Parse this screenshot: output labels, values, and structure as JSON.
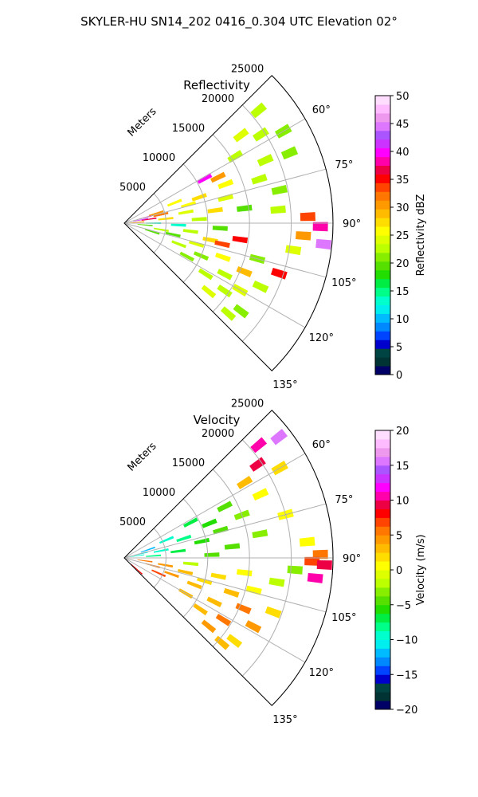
{
  "figure": {
    "title": "SKYLER-HU  SN14_202  0416_0.304 UTC Elevation 02°"
  },
  "colormaps": {
    "reflectivity": [
      "#000066",
      "#003333",
      "#004444",
      "#0000cc",
      "#0044ff",
      "#0088ff",
      "#00bbff",
      "#00eeee",
      "#00ffcc",
      "#00ff88",
      "#00ee44",
      "#22dd00",
      "#55e000",
      "#88ee00",
      "#bbff00",
      "#ddff00",
      "#ffff00",
      "#ffdd00",
      "#ffbb00",
      "#ff9900",
      "#ff7700",
      "#ff4400",
      "#ff0000",
      "#ee0044",
      "#ff00aa",
      "#ff00ff",
      "#cc33ff",
      "#aa55ff",
      "#dd77ff",
      "#ee99ee",
      "#ffbbff",
      "#ffddff"
    ],
    "velocity": [
      "#000066",
      "#003333",
      "#004444",
      "#0000cc",
      "#0044ff",
      "#0088ff",
      "#00bbff",
      "#00eeee",
      "#00ffcc",
      "#00ff88",
      "#00ee44",
      "#22dd00",
      "#55e000",
      "#88ee00",
      "#bbff00",
      "#ddff00",
      "#ffff00",
      "#ffdd00",
      "#ffbb00",
      "#ff9900",
      "#ff7700",
      "#ff4400",
      "#ff0000",
      "#ee0044",
      "#ff00aa",
      "#ff00ff",
      "#cc33ff",
      "#aa55ff",
      "#dd77ff",
      "#ee99ee",
      "#ffbbff",
      "#ffddff"
    ]
  },
  "chart_data": [
    {
      "type": "heatmap",
      "projection": "polar-sector",
      "title": "Reflectivity",
      "radial_label": "Meters",
      "radial_ticks": [
        5000,
        10000,
        15000,
        20000,
        25000
      ],
      "radial_tick_labels": [
        "5000",
        "10000",
        "15000",
        "20000",
        "25000"
      ],
      "radial_range": [
        0,
        25000
      ],
      "azimuth_range": [
        45,
        135
      ],
      "azimuth_ticks": [
        60,
        75,
        90,
        105,
        120,
        135
      ],
      "azimuth_tick_labels": [
        "60°",
        "75°",
        "90°",
        "105°",
        "120°",
        "135°"
      ],
      "grid": true,
      "colorbar": {
        "label": "Reflectivity dBZ",
        "range": [
          0,
          50
        ],
        "ticks": [
          0,
          5,
          10,
          15,
          20,
          25,
          30,
          35,
          40,
          45,
          50
        ],
        "tick_labels": [
          "0",
          "5",
          "10",
          "15",
          "20",
          "25",
          "30",
          "35",
          "40",
          "45",
          "50"
        ]
      },
      "cells": [
        {
          "az": 50,
          "r": 21000,
          "v": 22
        },
        {
          "az": 53,
          "r": 17500,
          "v": 24
        },
        {
          "az": 57,
          "r": 19500,
          "v": 22
        },
        {
          "az": 59,
          "r": 15500,
          "v": 23
        },
        {
          "az": 60,
          "r": 22000,
          "v": 21
        },
        {
          "az": 61,
          "r": 11000,
          "v": 40
        },
        {
          "az": 64,
          "r": 12500,
          "v": 30
        },
        {
          "az": 66,
          "r": 18500,
          "v": 22
        },
        {
          "az": 67,
          "r": 21500,
          "v": 21
        },
        {
          "az": 68,
          "r": 6500,
          "v": 26
        },
        {
          "az": 69,
          "r": 13000,
          "v": 25
        },
        {
          "az": 71,
          "r": 9500,
          "v": 28
        },
        {
          "az": 72,
          "r": 17000,
          "v": 22
        },
        {
          "az": 73,
          "r": 4000,
          "v": 30
        },
        {
          "az": 74,
          "r": 8000,
          "v": 25
        },
        {
          "az": 75,
          "r": 2500,
          "v": 38
        },
        {
          "az": 76,
          "r": 12500,
          "v": 24
        },
        {
          "az": 77,
          "r": 4500,
          "v": 32
        },
        {
          "az": 78,
          "r": 19000,
          "v": 21
        },
        {
          "az": 79,
          "r": 2000,
          "v": 42
        },
        {
          "az": 80,
          "r": 7500,
          "v": 24
        },
        {
          "az": 81,
          "r": 3000,
          "v": 36
        },
        {
          "az": 82,
          "r": 11000,
          "v": 28
        },
        {
          "az": 83,
          "r": 14500,
          "v": 20
        },
        {
          "az": 84,
          "r": 5000,
          "v": 27
        },
        {
          "az": 85,
          "r": 18500,
          "v": 22
        },
        {
          "az": 86,
          "r": 1500,
          "v": 30
        },
        {
          "az": 87,
          "r": 9000,
          "v": 22
        },
        {
          "az": 88,
          "r": 22000,
          "v": 33
        },
        {
          "az": 90,
          "r": 3500,
          "v": 14
        },
        {
          "az": 91,
          "r": 23500,
          "v": 38
        },
        {
          "az": 92,
          "r": 6500,
          "v": 13
        },
        {
          "az": 93,
          "r": 11500,
          "v": 20
        },
        {
          "az": 94,
          "r": 21500,
          "v": 30
        },
        {
          "az": 95,
          "r": 2500,
          "v": 20
        },
        {
          "az": 96,
          "r": 24000,
          "v": 44
        },
        {
          "az": 97,
          "r": 8000,
          "v": 22
        },
        {
          "az": 98,
          "r": 14000,
          "v": 35
        },
        {
          "az": 99,
          "r": 20500,
          "v": 24
        },
        {
          "az": 100,
          "r": 4500,
          "v": 22
        },
        {
          "az": 101,
          "r": 10500,
          "v": 28
        },
        {
          "az": 102,
          "r": 12000,
          "v": 33
        },
        {
          "az": 103,
          "r": 6000,
          "v": 20
        },
        {
          "az": 105,
          "r": 16500,
          "v": 21
        },
        {
          "az": 106,
          "r": 9000,
          "v": 24
        },
        {
          "az": 107,
          "r": 3500,
          "v": 20
        },
        {
          "az": 108,
          "r": 19500,
          "v": 35
        },
        {
          "az": 109,
          "r": 12500,
          "v": 26
        },
        {
          "az": 111,
          "r": 7000,
          "v": 22
        },
        {
          "az": 112,
          "r": 15500,
          "v": 29
        },
        {
          "az": 113,
          "r": 10000,
          "v": 21
        },
        {
          "az": 115,
          "r": 18000,
          "v": 22
        },
        {
          "az": 117,
          "r": 13500,
          "v": 23
        },
        {
          "az": 118,
          "r": 8500,
          "v": 21
        },
        {
          "az": 120,
          "r": 16000,
          "v": 24
        },
        {
          "az": 122,
          "r": 11500,
          "v": 22
        },
        {
          "az": 124,
          "r": 14500,
          "v": 22
        },
        {
          "az": 127,
          "r": 17500,
          "v": 21
        },
        {
          "az": 129,
          "r": 13000,
          "v": 24
        },
        {
          "az": 131,
          "r": 16500,
          "v": 22
        }
      ]
    },
    {
      "type": "heatmap",
      "projection": "polar-sector",
      "title": "Velocity",
      "radial_label": "Meters",
      "radial_ticks": [
        5000,
        10000,
        15000,
        20000,
        25000
      ],
      "radial_tick_labels": [
        "5000",
        "10000",
        "15000",
        "20000",
        "25000"
      ],
      "radial_range": [
        0,
        25000
      ],
      "azimuth_range": [
        45,
        135
      ],
      "azimuth_ticks": [
        60,
        75,
        90,
        105,
        120,
        135
      ],
      "azimuth_tick_labels": [
        "60°",
        "75°",
        "90°",
        "105°",
        "120°",
        "135°"
      ],
      "grid": true,
      "colorbar": {
        "label": "Velocity (m/s)",
        "range": [
          -20,
          20
        ],
        "ticks": [
          -20,
          -15,
          -10,
          -5,
          0,
          5,
          10,
          15,
          20
        ],
        "tick_labels": [
          "−20",
          "−15",
          "−10",
          "−5",
          "0",
          "5",
          "10",
          "15",
          "20"
        ]
      },
      "cells": [
        {
          "az": 50,
          "r": 21000,
          "v": 10
        },
        {
          "az": 52,
          "r": 23500,
          "v": 15
        },
        {
          "az": 55,
          "r": 19500,
          "v": 9
        },
        {
          "az": 58,
          "r": 17000,
          "v": 3
        },
        {
          "az": 60,
          "r": 21500,
          "v": 2
        },
        {
          "az": 62,
          "r": 9000,
          "v": -7
        },
        {
          "az": 63,
          "r": 13500,
          "v": -5
        },
        {
          "az": 65,
          "r": 18000,
          "v": 1
        },
        {
          "az": 67,
          "r": 5500,
          "v": -9
        },
        {
          "az": 68,
          "r": 11000,
          "v": -6
        },
        {
          "az": 70,
          "r": 15000,
          "v": -3
        },
        {
          "az": 71,
          "r": 3000,
          "v": -12
        },
        {
          "az": 72,
          "r": 7500,
          "v": -8
        },
        {
          "az": 74,
          "r": 12000,
          "v": -5
        },
        {
          "az": 75,
          "r": 20000,
          "v": 0
        },
        {
          "az": 76,
          "r": 2000,
          "v": -11
        },
        {
          "az": 78,
          "r": 9500,
          "v": -6
        },
        {
          "az": 79,
          "r": 4500,
          "v": -9
        },
        {
          "az": 80,
          "r": 16500,
          "v": -3
        },
        {
          "az": 81,
          "r": 1500,
          "v": -10
        },
        {
          "az": 83,
          "r": 6500,
          "v": -7
        },
        {
          "az": 84,
          "r": 13000,
          "v": -4
        },
        {
          "az": 85,
          "r": 22000,
          "v": 1
        },
        {
          "az": 86,
          "r": 3500,
          "v": -8
        },
        {
          "az": 88,
          "r": 10500,
          "v": -5
        },
        {
          "az": 89,
          "r": 23500,
          "v": 5
        },
        {
          "az": 91,
          "r": 22500,
          "v": 7
        },
        {
          "az": 92,
          "r": 24000,
          "v": 9
        },
        {
          "az": 94,
          "r": 20500,
          "v": -3
        },
        {
          "az": 95,
          "r": 8000,
          "v": -2
        },
        {
          "az": 96,
          "r": 23000,
          "v": 11
        },
        {
          "az": 97,
          "r": 14500,
          "v": 1
        },
        {
          "az": 98,
          "r": 2500,
          "v": 6
        },
        {
          "az": 99,
          "r": 18500,
          "v": -2
        },
        {
          "az": 100,
          "r": 5000,
          "v": 4
        },
        {
          "az": 101,
          "r": 11500,
          "v": 2
        },
        {
          "az": 103,
          "r": 7500,
          "v": 3
        },
        {
          "az": 104,
          "r": 16000,
          "v": 1
        },
        {
          "az": 105,
          "r": 3500,
          "v": 5
        },
        {
          "az": 106,
          "r": 10000,
          "v": 2
        },
        {
          "az": 108,
          "r": 13500,
          "v": 3
        },
        {
          "az": 109,
          "r": 6000,
          "v": 4
        },
        {
          "az": 110,
          "r": 19000,
          "v": 2
        },
        {
          "az": 111,
          "r": 9000,
          "v": 3
        },
        {
          "az": 113,
          "r": 15500,
          "v": 5
        },
        {
          "az": 114,
          "r": 4500,
          "v": 7
        },
        {
          "az": 116,
          "r": 12000,
          "v": 3
        },
        {
          "az": 118,
          "r": 17500,
          "v": 4
        },
        {
          "az": 120,
          "r": 8500,
          "v": 3
        },
        {
          "az": 122,
          "r": 14000,
          "v": 5
        },
        {
          "az": 124,
          "r": 11000,
          "v": 3
        },
        {
          "az": 127,
          "r": 16500,
          "v": 2
        },
        {
          "az": 129,
          "r": 13000,
          "v": 4
        },
        {
          "az": 131,
          "r": 15500,
          "v": 3
        },
        {
          "az": 132,
          "r": 2000,
          "v": 8
        }
      ]
    }
  ]
}
